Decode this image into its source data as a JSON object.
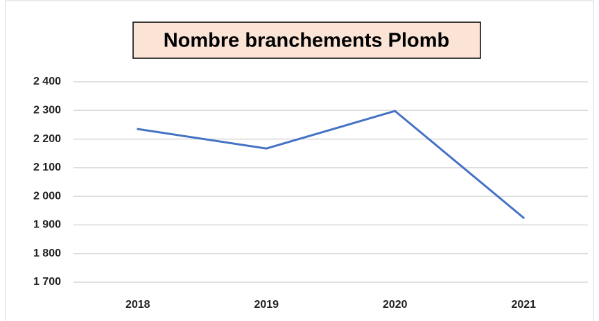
{
  "chart_data": {
    "type": "line",
    "title": "Nombre branchements Plomb",
    "categories": [
      "2018",
      "2019",
      "2020",
      "2021"
    ],
    "series": [
      {
        "name": "Nombre branchements Plomb",
        "color": "#4472c4",
        "values": [
          2235,
          2167,
          2298,
          1925
        ]
      }
    ],
    "ylim": [
      1700,
      2400
    ],
    "yticks": [
      {
        "value": 1700,
        "label": "1 700"
      },
      {
        "value": 1800,
        "label": "1 800"
      },
      {
        "value": 1900,
        "label": "1 900"
      },
      {
        "value": 2000,
        "label": "2 000"
      },
      {
        "value": 2100,
        "label": "2 100"
      },
      {
        "value": 2200,
        "label": "2 200"
      },
      {
        "value": 2300,
        "label": "2 300"
      },
      {
        "value": 2400,
        "label": "2 400"
      }
    ],
    "grid": true
  }
}
